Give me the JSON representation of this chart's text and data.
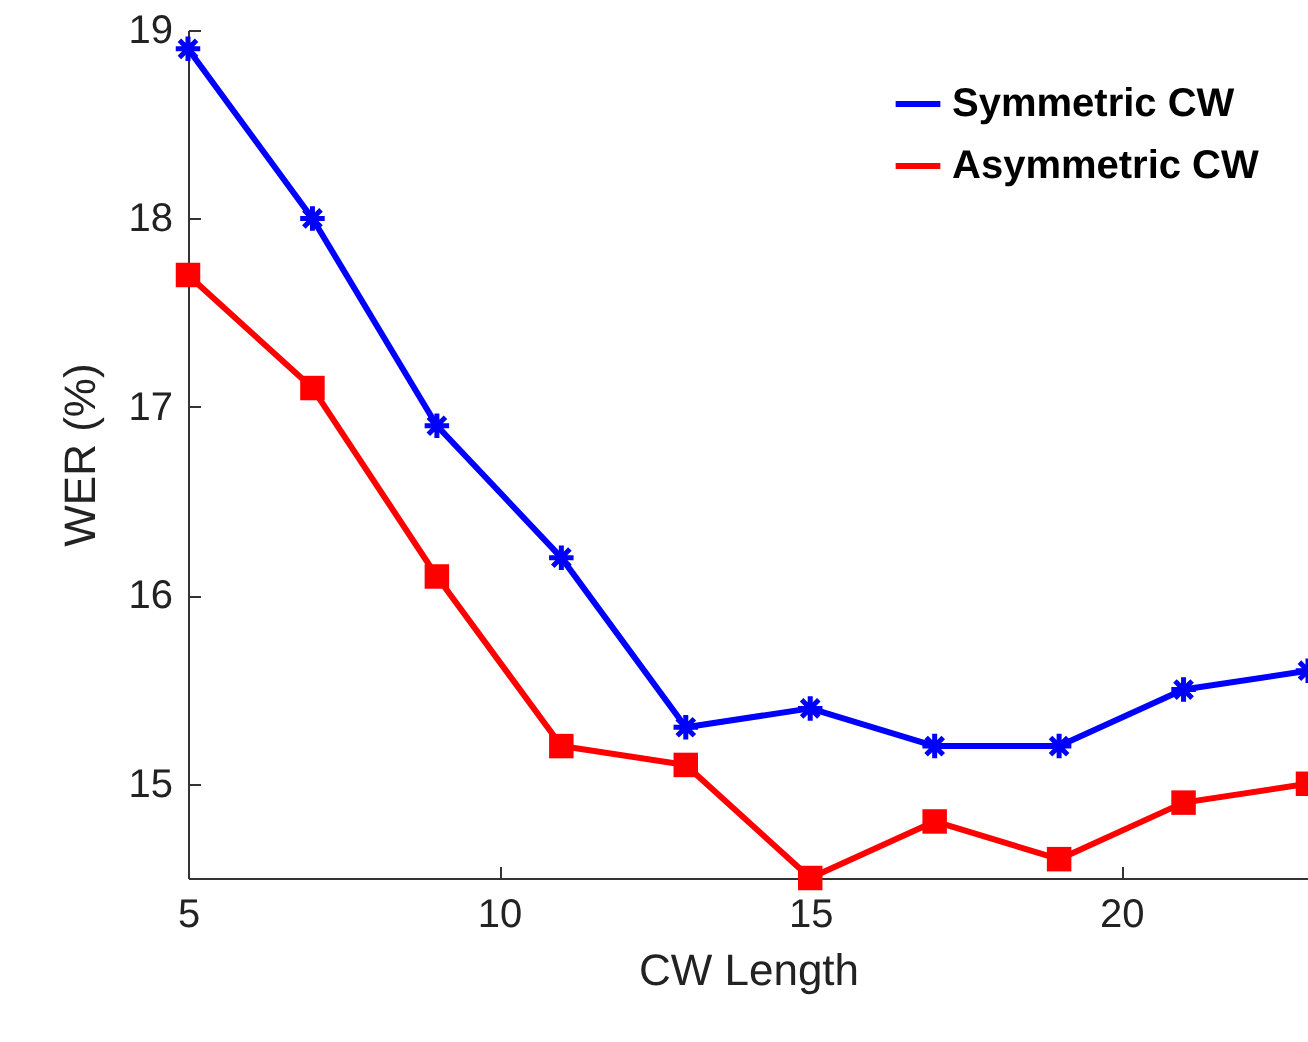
{
  "chart_data": {
    "type": "line",
    "xlabel": "CW Length",
    "ylabel": "WER (%)",
    "x": [
      5,
      7,
      9,
      11,
      13,
      15,
      17,
      19,
      21,
      23
    ],
    "xlim": [
      5,
      23
    ],
    "xticks": [
      5,
      10,
      15,
      20
    ],
    "ylim": [
      14.5,
      19
    ],
    "yticks": [
      15,
      16,
      17,
      18,
      19
    ],
    "grid": false,
    "legend": "top right",
    "line_style": "solid",
    "series": [
      {
        "name": "Symmetric CW",
        "color": "#0000ff",
        "marker": "cross",
        "values": [
          18.9,
          18.0,
          16.9,
          16.2,
          15.3,
          15.4,
          15.2,
          15.2,
          15.5,
          15.6
        ]
      },
      {
        "name": "Asymmetric CW",
        "color": "#ff0000",
        "marker": "square",
        "values": [
          17.7,
          17.1,
          16.1,
          15.2,
          15.1,
          14.5,
          14.8,
          14.6,
          14.9,
          15.0
        ]
      }
    ]
  }
}
